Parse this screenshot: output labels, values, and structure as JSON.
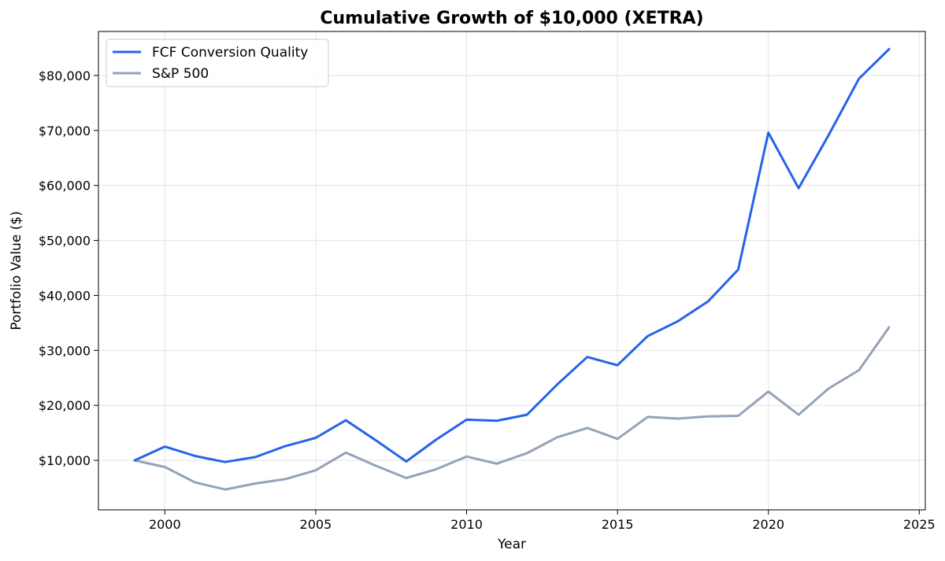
{
  "chart_data": {
    "type": "line",
    "title": "Cumulative Growth of $10,000 (XETRA)",
    "xlabel": "Year",
    "ylabel": "Portfolio Value ($)",
    "xlim": [
      1997.8,
      2025.2
    ],
    "ylim": [
      1000,
      88000
    ],
    "x_ticks": [
      2000,
      2005,
      2010,
      2015,
      2020,
      2025
    ],
    "x_tick_labels": [
      "2000",
      "2005",
      "2010",
      "2015",
      "2020",
      "2025"
    ],
    "y_ticks": [
      10000,
      20000,
      30000,
      40000,
      50000,
      60000,
      70000,
      80000
    ],
    "y_tick_labels": [
      "$10,000",
      "$20,000",
      "$30,000",
      "$40,000",
      "$50,000",
      "$60,000",
      "$70,000",
      "$80,000"
    ],
    "grid": true,
    "legend_position": "top-left",
    "x": [
      1999,
      2000,
      2001,
      2002,
      2003,
      2004,
      2005,
      2006,
      2007,
      2008,
      2009,
      2010,
      2011,
      2012,
      2013,
      2014,
      2015,
      2016,
      2017,
      2018,
      2019,
      2020,
      2021,
      2022,
      2023,
      2024
    ],
    "series": [
      {
        "name": "FCF Conversion Quality",
        "color": "#2563eb",
        "values": [
          10000,
          12500,
          10800,
          9700,
          10600,
          12600,
          14100,
          17300,
          13600,
          9800,
          13800,
          17400,
          17200,
          18300,
          23800,
          28800,
          27300,
          32600,
          35300,
          38900,
          44700,
          69600,
          59500,
          69200,
          79400,
          84800
        ]
      },
      {
        "name": "S&P 500",
        "color": "#94a3b8",
        "values": [
          10000,
          8800,
          6000,
          4700,
          5800,
          6600,
          8200,
          11400,
          9000,
          6800,
          8400,
          10700,
          9400,
          11300,
          14200,
          15900,
          13900,
          17900,
          17600,
          18000,
          18100,
          22500,
          18300,
          23100,
          26400,
          34200
        ]
      }
    ]
  }
}
